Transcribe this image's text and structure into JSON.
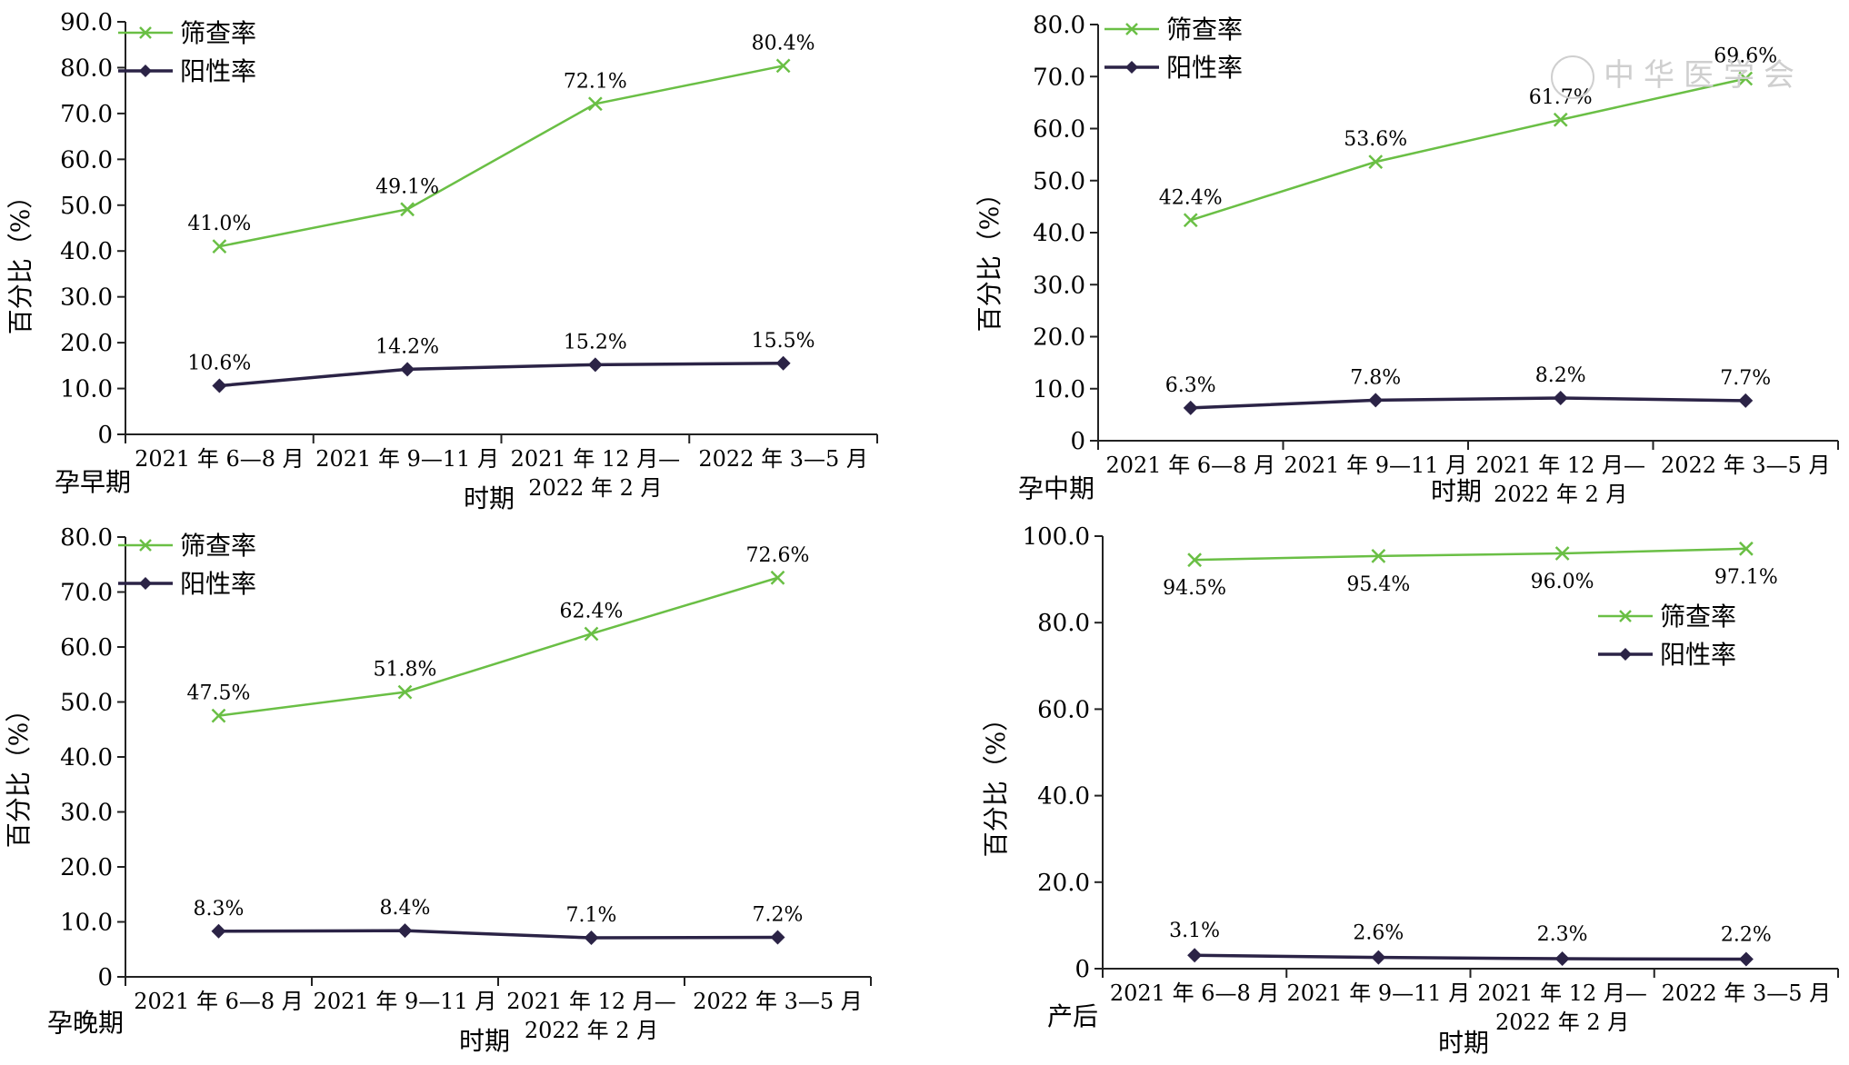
{
  "figure": {
    "ylabel": "百分比（%）",
    "xlabel": "时期",
    "legend": [
      "筛查率",
      "阳性率"
    ],
    "colors": {
      "screening": "#6abf45",
      "positive": "#2b2346",
      "axis": "#222222"
    }
  },
  "chart_data": [
    {
      "type": "line",
      "panel_label": "孕早期",
      "categories": [
        "2021 年 6—8 月",
        "2021 年 9—11 月",
        "2021 年 12 月—\n2022 年 2 月",
        "2022 年 3—5 月"
      ],
      "xlabel": "时期",
      "ylabel": "百分比（%）",
      "ylim": [
        0,
        90
      ],
      "yticks": [
        "0",
        "10.0",
        "20.0",
        "30.0",
        "40.0",
        "50.0",
        "60.0",
        "70.0",
        "80.0",
        "90.0"
      ],
      "legend_position": "top-left",
      "series": [
        {
          "name": "筛查率",
          "values": [
            41.0,
            49.1,
            72.1,
            80.4
          ],
          "labels": [
            "41.0%",
            "49.1%",
            "72.1%",
            "80.4%"
          ]
        },
        {
          "name": "阳性率",
          "values": [
            10.6,
            14.2,
            15.2,
            15.5
          ],
          "labels": [
            "10.6%",
            "14.2%",
            "15.2%",
            "15.5%"
          ]
        }
      ]
    },
    {
      "type": "line",
      "panel_label": "孕中期",
      "categories": [
        "2021 年 6—8 月",
        "2021 年 9—11 月",
        "2021 年 12 月—\n2022 年 2 月",
        "2022 年 3—5 月"
      ],
      "xlabel": "时期",
      "ylabel": "百分比（%）",
      "ylim": [
        0,
        80
      ],
      "yticks": [
        "0",
        "10.0",
        "20.0",
        "30.0",
        "40.0",
        "50.0",
        "60.0",
        "70.0",
        "80.0"
      ],
      "legend_position": "top-left",
      "series": [
        {
          "name": "筛查率",
          "values": [
            42.4,
            53.6,
            61.7,
            69.6
          ],
          "labels": [
            "42.4%",
            "53.6%",
            "61.7%",
            "69.6%"
          ]
        },
        {
          "name": "阳性率",
          "values": [
            6.3,
            7.8,
            8.2,
            7.7
          ],
          "labels": [
            "6.3%",
            "7.8%",
            "8.2%",
            "7.7%"
          ]
        }
      ]
    },
    {
      "type": "line",
      "panel_label": "孕晚期",
      "categories": [
        "2021 年 6—8 月",
        "2021 年 9—11 月",
        "2021 年 12 月—\n2022 年 2 月",
        "2022 年 3—5 月"
      ],
      "xlabel": "时期",
      "ylabel": "百分比（%）",
      "ylim": [
        0,
        80
      ],
      "yticks": [
        "0",
        "10.0",
        "20.0",
        "30.0",
        "40.0",
        "50.0",
        "60.0",
        "70.0",
        "80.0"
      ],
      "legend_position": "top-left",
      "series": [
        {
          "name": "筛查率",
          "values": [
            47.5,
            51.8,
            62.4,
            72.6
          ],
          "labels": [
            "47.5%",
            "51.8%",
            "62.4%",
            "72.6%"
          ]
        },
        {
          "name": "阳性率",
          "values": [
            8.3,
            8.4,
            7.1,
            7.2
          ],
          "labels": [
            "8.3%",
            "8.4%",
            "7.1%",
            "7.2%"
          ]
        }
      ]
    },
    {
      "type": "line",
      "panel_label": "产后",
      "categories": [
        "2021 年 6—8 月",
        "2021 年 9—11 月",
        "2021 年 12 月—\n2022 年 2 月",
        "2022 年 3—5 月"
      ],
      "xlabel": "时期",
      "ylabel": "百分比（%）",
      "ylim": [
        0,
        100
      ],
      "yticks": [
        "0",
        "20.0",
        "40.0",
        "60.0",
        "80.0",
        "100.0"
      ],
      "legend_position": "right",
      "series": [
        {
          "name": "筛查率",
          "values": [
            94.5,
            95.4,
            96.0,
            97.1
          ],
          "labels": [
            "94.5%",
            "95.4%",
            "96.0%",
            "97.1%"
          ]
        },
        {
          "name": "阳性率",
          "values": [
            3.1,
            2.6,
            2.3,
            2.2
          ],
          "labels": [
            "3.1%",
            "2.6%",
            "2.3%",
            "2.2%"
          ]
        }
      ]
    }
  ],
  "watermark": "中华医学会"
}
